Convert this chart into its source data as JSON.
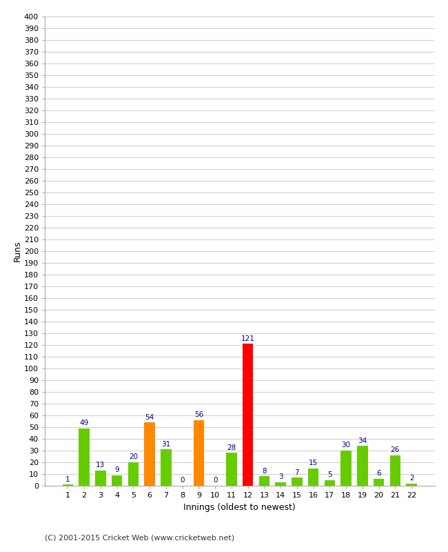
{
  "innings": [
    1,
    2,
    3,
    4,
    5,
    6,
    7,
    8,
    9,
    10,
    11,
    12,
    13,
    14,
    15,
    16,
    17,
    18,
    19,
    20,
    21,
    22
  ],
  "runs": [
    1,
    49,
    13,
    9,
    20,
    54,
    31,
    0,
    56,
    0,
    28,
    121,
    8,
    3,
    7,
    15,
    5,
    30,
    34,
    6,
    26,
    2
  ],
  "colors": [
    "#66cc00",
    "#66cc00",
    "#66cc00",
    "#66cc00",
    "#66cc00",
    "#ff8800",
    "#66cc00",
    "#66cc00",
    "#ff8800",
    "#66cc00",
    "#66cc00",
    "#ff0000",
    "#66cc00",
    "#66cc00",
    "#66cc00",
    "#66cc00",
    "#66cc00",
    "#66cc00",
    "#66cc00",
    "#66cc00",
    "#66cc00",
    "#66cc00"
  ],
  "xlabel": "Innings (oldest to newest)",
  "ylabel": "Runs",
  "ylim": [
    0,
    400
  ],
  "label_color": "#000080",
  "label_fontsize": 7.5,
  "axis_tick_fontsize": 8,
  "axis_label_fontsize": 9,
  "grid_color": "#cccccc",
  "bg_color": "#ffffff",
  "footer": "(C) 2001-2015 Cricket Web (www.cricketweb.net)",
  "footer_fontsize": 8
}
